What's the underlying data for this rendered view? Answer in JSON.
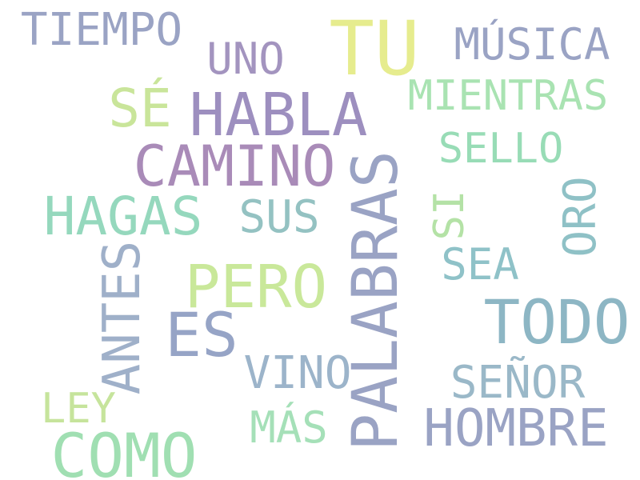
{
  "words": [
    {
      "text": "TIEMPO",
      "color": "#9aa3c4",
      "orientation": "horizontal"
    },
    {
      "text": "TU",
      "color": "#e6ec8e",
      "orientation": "horizontal"
    },
    {
      "text": "MÚSICA",
      "color": "#9aa3c4",
      "orientation": "horizontal"
    },
    {
      "text": "UNO",
      "color": "#a394bf",
      "orientation": "horizontal"
    },
    {
      "text": "SÉ",
      "color": "#c9e59a",
      "orientation": "horizontal"
    },
    {
      "text": "HABLA",
      "color": "#9d8fbf",
      "orientation": "horizontal"
    },
    {
      "text": "MIENTRAS",
      "color": "#a9e3b2",
      "orientation": "horizontal"
    },
    {
      "text": "CAMINO",
      "color": "#a98bb8",
      "orientation": "horizontal"
    },
    {
      "text": "SELLO",
      "color": "#98dcb6",
      "orientation": "horizontal"
    },
    {
      "text": "HAGAS",
      "color": "#95d8bd",
      "orientation": "horizontal"
    },
    {
      "text": "SUS",
      "color": "#94c2c2",
      "orientation": "horizontal"
    },
    {
      "text": "PALABRAS",
      "color": "#9aa3c4",
      "orientation": "vertical"
    },
    {
      "text": "SI",
      "color": "#b4e2a6",
      "orientation": "vertical"
    },
    {
      "text": "ORO",
      "color": "#8fc1c6",
      "orientation": "vertical"
    },
    {
      "text": "ANTES",
      "color": "#9fb0c9",
      "orientation": "vertical"
    },
    {
      "text": "PERO",
      "color": "#c9e89a",
      "orientation": "horizontal"
    },
    {
      "text": "SEA",
      "color": "#8fc2c8",
      "orientation": "horizontal"
    },
    {
      "text": "TODO",
      "color": "#8db6c4",
      "orientation": "horizontal"
    },
    {
      "text": "ES",
      "color": "#96a4c6",
      "orientation": "horizontal"
    },
    {
      "text": "VINO",
      "color": "#9cb4ca",
      "orientation": "horizontal"
    },
    {
      "text": "SEÑOR",
      "color": "#9ab8c8",
      "orientation": "horizontal"
    },
    {
      "text": "LEY",
      "color": "#c6e49c",
      "orientation": "horizontal"
    },
    {
      "text": "MÁS",
      "color": "#a5e0b8",
      "orientation": "horizontal"
    },
    {
      "text": "HOMBRE",
      "color": "#9aa3c4",
      "orientation": "horizontal"
    },
    {
      "text": "COMO",
      "color": "#a0dfb2",
      "orientation": "horizontal"
    }
  ]
}
